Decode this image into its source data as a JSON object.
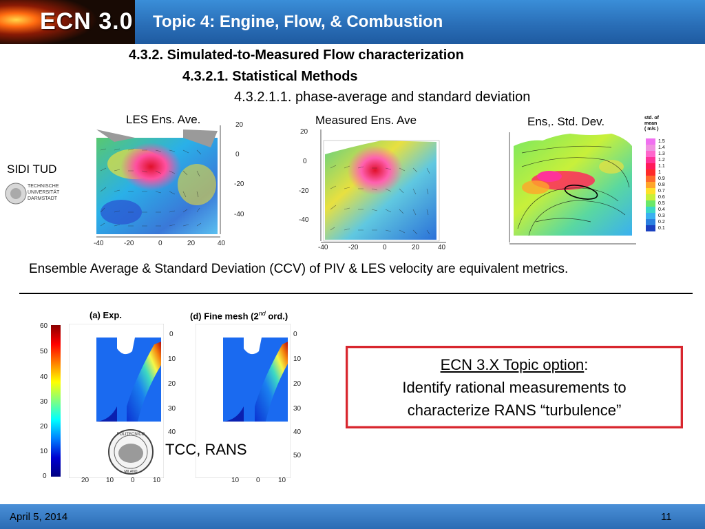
{
  "header": {
    "logo_text": "ECN 3.0",
    "title": "Topic 4:  Engine, Flow, & Combustion"
  },
  "headings": {
    "level1": "4.3.2.   Simulated-to-Measured Flow characterization",
    "level2": "4.3.2.1.   Statistical Methods",
    "level3": "4.3.2.1.1.  phase-average and standard deviation"
  },
  "panels": {
    "les_label": "LES Ens. Ave.",
    "measured_label": "Measured Ens. Ave",
    "std_label": "Ens,. Std. Dev.",
    "institution": "SIDI TUD",
    "tud_logo_text": [
      "TECHNISCHE",
      "UNIVERSITÄT",
      "DARMSTADT"
    ],
    "std_legend_title": [
      "std. of",
      "mean",
      "( m/s )"
    ],
    "std_legend_values": [
      "1.5",
      "1.4",
      "1.3",
      "1.2",
      "1.1",
      "1",
      "0.9",
      "0.8",
      "0.7",
      "0.6",
      "0.5",
      "0.4",
      "0.3",
      "0.2",
      "0.1"
    ],
    "std_legend_colors": [
      "#f070f0",
      "#f090e0",
      "#ff66cc",
      "#ff3399",
      "#ff1a5a",
      "#ff2a2a",
      "#ff6a2a",
      "#ffa52a",
      "#ffe02a",
      "#c8f03a",
      "#6ae86a",
      "#3ad8c8",
      "#3ab0f0",
      "#2a80e0",
      "#1a40c0"
    ],
    "les_xticks": [
      "-40",
      "-20",
      "0",
      "20",
      "40"
    ],
    "les_yticks": [
      "20",
      "0",
      "-20",
      "-40"
    ],
    "meas_xticks": [
      "-40",
      "-20",
      "0",
      "20",
      "40"
    ],
    "meas_yticks": [
      "20",
      "0",
      "-20",
      "-40"
    ]
  },
  "statement": "Ensemble Average & Standard Deviation (CCV) of PIV &  LES velocity  are equivalent metrics.",
  "lower": {
    "exp_label": "(a) Exp.",
    "fine_label": "(d) Fine mesh (2",
    "fine_sup": "nd",
    "fine_tail": " ord.)",
    "colorbar_ticks": [
      "60",
      "50",
      "40",
      "30",
      "20",
      "10",
      "0"
    ],
    "depth_ticks": [
      "0",
      "10",
      "20",
      "30",
      "40",
      "50"
    ],
    "x_ticks_left": [
      "20",
      "10",
      "0",
      "10"
    ],
    "x_ticks_right": [
      "10",
      "0",
      "10"
    ],
    "tcc_label": "TCC,  RANS",
    "seal_text": "POLITECNICO MILANO"
  },
  "option_box": {
    "line1_underlined": "ECN 3.X  Topic option",
    "line1_tail": ":",
    "line2": "Identify  rational measurements to",
    "line3": "characterize RANS “turbulence”"
  },
  "footer": {
    "date": "April 5, 2014",
    "page": "11"
  }
}
